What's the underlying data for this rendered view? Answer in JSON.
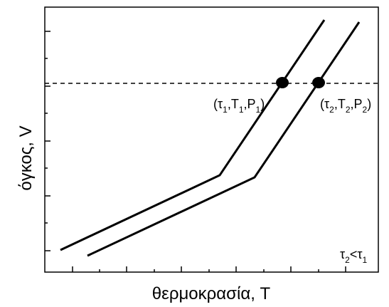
{
  "diagram": {
    "xlabel": "θερμοκρασία, T",
    "ylabel": "όγκος, V",
    "point1": {
      "tau": "τ",
      "sub1": "1",
      "T": "T",
      "sub2": "1",
      "P": "P",
      "sub3": "1"
    },
    "point2": {
      "tau": "τ",
      "sub1": "2",
      "T": "T",
      "sub2": "2",
      "P": "P",
      "sub3": "2"
    },
    "condition": {
      "a": "τ",
      "a_sub": "2",
      "op": "<",
      "b": "τ",
      "b_sub": "1"
    },
    "paren_open": "(",
    "paren_close": ")",
    "comma": ","
  }
}
